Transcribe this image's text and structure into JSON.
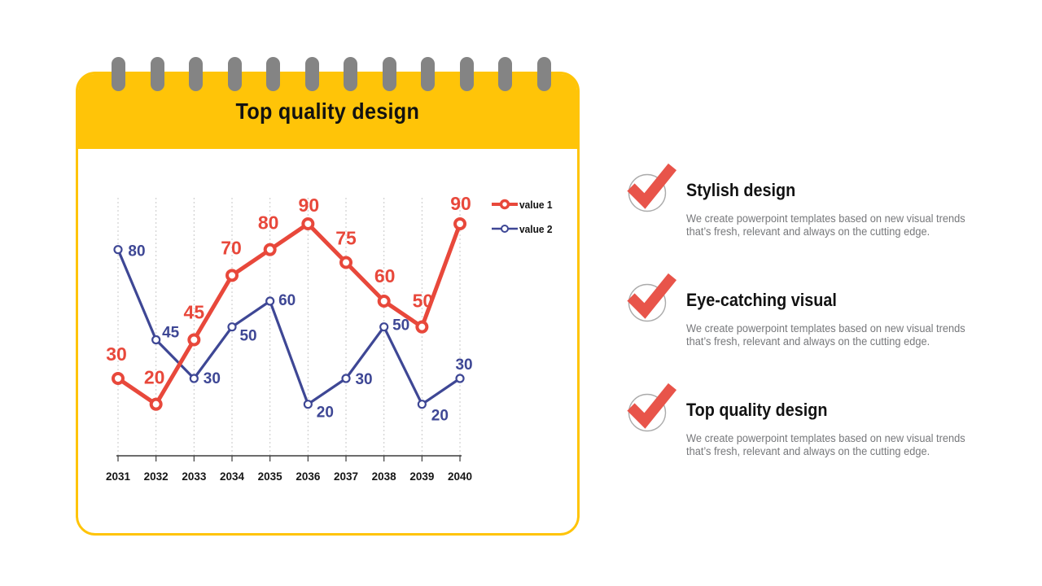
{
  "theme": {
    "background": "#FFFFFF",
    "yellow": "#FFC408",
    "ring_gray": "#848484",
    "text_black": "#121212",
    "desc_gray": "#77787B",
    "axis_color": "#3C3C3C",
    "grid_color": "#C8C8C8",
    "check_red": "#E8544A",
    "check_circle_gray": "#ABABAB"
  },
  "notepad": {
    "title": "Top quality design",
    "ring_count": 12
  },
  "chart_data": {
    "type": "line",
    "title": "",
    "categories": [
      "2031",
      "2032",
      "2033",
      "2034",
      "2035",
      "2036",
      "2037",
      "2038",
      "2039",
      "2040"
    ],
    "series": [
      {
        "name": "value 1",
        "color": "#E8483B",
        "values": [
          30,
          20,
          45,
          70,
          80,
          90,
          75,
          60,
          50,
          90
        ],
        "label_offsets": [
          [
            -2,
            -22
          ],
          [
            -2,
            -25
          ],
          [
            0,
            -26
          ],
          [
            -1,
            -26
          ],
          [
            -2,
            -25
          ],
          [
            1,
            -15
          ],
          [
            0,
            -22
          ],
          [
            1,
            -23
          ],
          [
            1,
            -24
          ],
          [
            1,
            -17
          ]
        ]
      },
      {
        "name": "value 2",
        "color": "#3E4795",
        "values": [
          80,
          45,
          30,
          50,
          60,
          20,
          30,
          50,
          20,
          30
        ],
        "label_offsets": [
          [
            23,
            8
          ],
          [
            18,
            -3
          ],
          [
            22,
            6
          ],
          [
            20,
            17
          ],
          [
            21,
            5
          ],
          [
            21,
            16
          ],
          [
            22,
            7
          ],
          [
            21,
            4
          ],
          [
            22,
            20
          ],
          [
            5,
            -11
          ]
        ]
      }
    ],
    "ylim": [
      0,
      100
    ],
    "xlabel": "",
    "ylabel": "",
    "grid": "vertical-dashed",
    "y_axis_shown": false,
    "data_labels": true,
    "legend_position": "right-of-plot-top"
  },
  "features": [
    {
      "title": "Stylish design",
      "desc_lines": [
        "We create powerpoint templates based on new visual trends",
        "that’s fresh, relevant and always on the cutting edge."
      ]
    },
    {
      "title": "Eye-catching visual",
      "desc_lines": [
        "We create powerpoint templates based on new visual trends",
        "that’s fresh, relevant and always on the cutting edge."
      ]
    },
    {
      "title": "Top quality design",
      "desc_lines": [
        "We create powerpoint templates based on new visual trends",
        "that’s fresh, relevant and always on the cutting edge."
      ]
    }
  ]
}
